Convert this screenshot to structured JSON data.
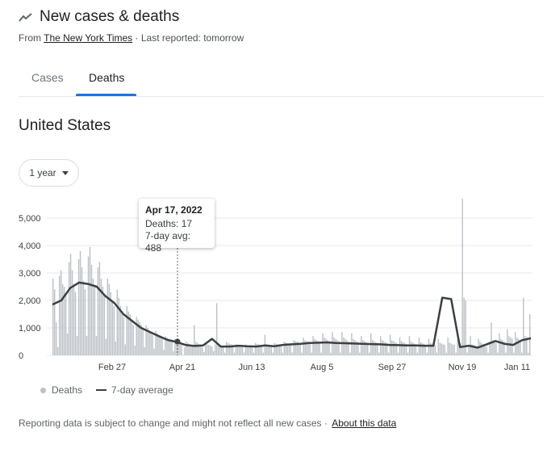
{
  "header": {
    "title": "New cases & deaths",
    "title_icon": "trending-line-icon",
    "source_prefix": "From",
    "source_link": "The New York Times",
    "source_suffix": "· Last reported: tomorrow"
  },
  "tabs": [
    {
      "label": "Cases",
      "active": false
    },
    {
      "label": "Deaths",
      "active": true
    }
  ],
  "region": "United States",
  "range_selector": {
    "label": "1 year",
    "icon": "caret-down-icon"
  },
  "tooltip": {
    "date": "Apr 17, 2022",
    "deaths": "Deaths: 17",
    "avg": "7-day avg: 488"
  },
  "legend": {
    "bars": "Deaths",
    "line": "7-day average"
  },
  "footer": {
    "text": "Reporting data is subject to change and might not reflect all new cases ·",
    "link": "About this data"
  },
  "colors": {
    "bars": "#bdc1c6",
    "line": "#3c4043",
    "grid": "#e8eaed",
    "accent": "#1a73e8"
  },
  "chart_data": {
    "type": "bar",
    "title": "",
    "x_ticks": [
      "Feb 27",
      "Apr 21",
      "Jun 13",
      "Aug 5",
      "Sep 27",
      "Nov 19",
      "Jan 11"
    ],
    "y_ticks": [
      "0",
      "1,000",
      "2,000",
      "3,000",
      "4,000",
      "5,000"
    ],
    "ylim": [
      0,
      5800
    ],
    "grid": true,
    "series": [
      {
        "name": "Deaths",
        "kind": "bar"
      },
      {
        "name": "7-day average",
        "kind": "line"
      }
    ],
    "highlight": {
      "date": "Apr 17, 2022",
      "deaths": 17,
      "avg": 488
    },
    "avg_points": [
      {
        "date": "Jan 11",
        "v": 1850
      },
      {
        "date": "Jan 18",
        "v": 2000
      },
      {
        "date": "Jan 25",
        "v": 2450
      },
      {
        "date": "Feb 1",
        "v": 2650
      },
      {
        "date": "Feb 8",
        "v": 2600
      },
      {
        "date": "Feb 15",
        "v": 2500
      },
      {
        "date": "Feb 22",
        "v": 2150
      },
      {
        "date": "Mar 1",
        "v": 1900
      },
      {
        "date": "Mar 8",
        "v": 1500
      },
      {
        "date": "Mar 15",
        "v": 1250
      },
      {
        "date": "Mar 22",
        "v": 1000
      },
      {
        "date": "Mar 29",
        "v": 850
      },
      {
        "date": "Apr 5",
        "v": 700
      },
      {
        "date": "Apr 12",
        "v": 560
      },
      {
        "date": "Apr 17",
        "v": 488
      },
      {
        "date": "Apr 24",
        "v": 380
      },
      {
        "date": "May 1",
        "v": 340
      },
      {
        "date": "May 8",
        "v": 360
      },
      {
        "date": "May 15",
        "v": 600
      },
      {
        "date": "May 22",
        "v": 320
      },
      {
        "date": "May 29",
        "v": 320
      },
      {
        "date": "Jun 5",
        "v": 350
      },
      {
        "date": "Jun 12",
        "v": 330
      },
      {
        "date": "Jun 19",
        "v": 320
      },
      {
        "date": "Jun 26",
        "v": 360
      },
      {
        "date": "Jul 3",
        "v": 330
      },
      {
        "date": "Jul 10",
        "v": 380
      },
      {
        "date": "Jul 17",
        "v": 400
      },
      {
        "date": "Jul 24",
        "v": 420
      },
      {
        "date": "Jul 31",
        "v": 450
      },
      {
        "date": "Aug 7",
        "v": 460
      },
      {
        "date": "Aug 14",
        "v": 470
      },
      {
        "date": "Aug 21",
        "v": 450
      },
      {
        "date": "Aug 28",
        "v": 440
      },
      {
        "date": "Sep 4",
        "v": 430
      },
      {
        "date": "Sep 11",
        "v": 420
      },
      {
        "date": "Sep 18",
        "v": 410
      },
      {
        "date": "Sep 25",
        "v": 400
      },
      {
        "date": "Oct 2",
        "v": 380
      },
      {
        "date": "Oct 9",
        "v": 370
      },
      {
        "date": "Oct 16",
        "v": 360
      },
      {
        "date": "Oct 23",
        "v": 360
      },
      {
        "date": "Oct 30",
        "v": 350
      },
      {
        "date": "Nov 6",
        "v": 350
      },
      {
        "date": "Nov 10",
        "v": 2100
      },
      {
        "date": "Nov 14",
        "v": 2050
      },
      {
        "date": "Nov 17",
        "v": 300
      },
      {
        "date": "Nov 24",
        "v": 350
      },
      {
        "date": "Dec 1",
        "v": 280
      },
      {
        "date": "Dec 8",
        "v": 400
      },
      {
        "date": "Dec 15",
        "v": 520
      },
      {
        "date": "Dec 22",
        "v": 420
      },
      {
        "date": "Dec 29",
        "v": 380
      },
      {
        "date": "Jan 5",
        "v": 550
      },
      {
        "date": "Jan 11",
        "v": 620
      }
    ],
    "daily_deaths": [
      2800,
      2400,
      1200,
      300,
      2900,
      3100,
      2600,
      2500,
      2200,
      800,
      3400,
      3700,
      3100,
      2600,
      2300,
      700,
      3500,
      3800,
      3200,
      2700,
      2400,
      700,
      3600,
      3950,
      3300,
      2800,
      2500,
      700,
      3200,
      3400,
      2800,
      2500,
      2200,
      600,
      2800,
      2600,
      2300,
      2000,
      1800,
      500,
      2400,
      2100,
      1800,
      1600,
      1400,
      400,
      1800,
      1600,
      1500,
      1300,
      1100,
      350,
      1400,
      1300,
      1200,
      1100,
      950,
      300,
      1100,
      1000,
      900,
      850,
      750,
      250,
      900,
      800,
      700,
      650,
      600,
      200,
      700,
      650,
      600,
      550,
      500,
      150,
      600,
      550,
      500,
      480,
      420,
      17,
      300,
      500,
      450,
      400,
      380,
      350,
      1100,
      500,
      450,
      400,
      350,
      300,
      120,
      450,
      400,
      380,
      350,
      320,
      150,
      400,
      1900,
      380,
      350,
      320,
      300,
      100,
      500,
      450,
      420,
      400,
      380,
      100,
      400,
      380,
      350,
      320,
      300,
      100,
      380,
      360,
      340,
      320,
      300,
      100,
      450,
      420,
      400,
      380,
      350,
      100,
      750,
      400,
      380,
      360,
      340,
      100,
      450,
      420,
      400,
      380,
      350,
      100,
      500,
      470,
      450,
      420,
      400,
      100,
      550,
      520,
      500,
      480,
      450,
      100,
      650,
      550,
      520,
      500,
      470,
      100,
      700,
      600,
      560,
      520,
      480,
      100,
      800,
      650,
      600,
      560,
      520,
      100,
      850,
      650,
      600,
      560,
      520,
      100,
      850,
      650,
      600,
      560,
      500,
      100,
      800,
      600,
      560,
      520,
      480,
      100,
      700,
      560,
      520,
      480,
      450,
      100,
      800,
      560,
      520,
      480,
      450,
      100,
      700,
      560,
      520,
      480,
      450,
      100,
      750,
      550,
      520,
      480,
      450,
      100,
      650,
      520,
      480,
      450,
      420,
      100,
      700,
      500,
      460,
      430,
      400,
      100,
      650,
      480,
      450,
      420,
      380,
      100,
      600,
      460,
      430,
      400,
      380,
      100,
      600,
      460,
      430,
      400,
      380,
      100,
      650,
      460,
      430,
      400,
      380,
      100,
      600,
      460,
      430,
      5700,
      2100,
      2000,
      100,
      300,
      700,
      400,
      380,
      350,
      300,
      600,
      500,
      450,
      400,
      350,
      300,
      100,
      500,
      1200,
      550,
      500,
      450,
      100,
      800,
      600,
      550,
      500,
      100,
      950,
      700,
      650,
      600,
      100,
      850,
      650,
      600,
      550,
      100,
      2100,
      700,
      650,
      100,
      1500
    ]
  }
}
